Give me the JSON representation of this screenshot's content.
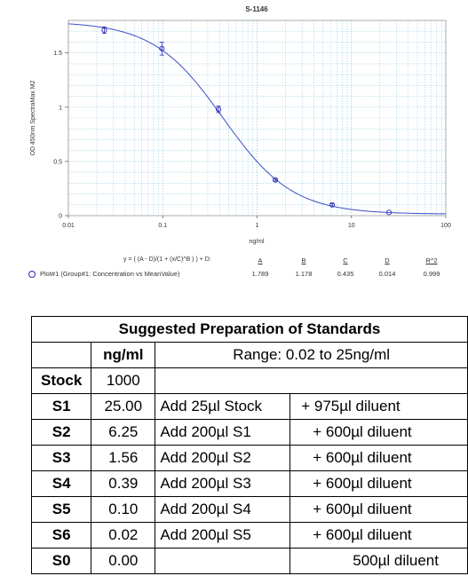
{
  "chart_data": {
    "type": "scatter",
    "title": "S-1146",
    "xlabel": "ng/ml",
    "ylabel": "OD 450nm SpectraMax M2",
    "xscale": "log",
    "xlim": [
      0.01,
      100
    ],
    "ylim": [
      0,
      1.8
    ],
    "x_ticks": [
      "0.01",
      "0.1",
      "1",
      "10",
      "100"
    ],
    "y_ticks": [
      "0",
      "0.5",
      "1",
      "1.5"
    ],
    "grid": true,
    "series": [
      {
        "name": "Plot#1 (Group#1: Concentration vs MeanValue)",
        "x": [
          0.024,
          0.098,
          0.39,
          1.56,
          6.25,
          25.0
        ],
        "y": [
          1.71,
          1.54,
          0.98,
          0.33,
          0.1,
          0.03
        ],
        "error": [
          0.03,
          0.06,
          0.03,
          0.01,
          0.01,
          0.005
        ]
      }
    ],
    "fit": {
      "equation": "y = ( (A - D)/(1 + (x/C)^B ) ) + D:",
      "params": {
        "A": 1.789,
        "B": 1.178,
        "C": 0.435,
        "D": 0.014,
        "R^2": 0.999
      }
    }
  },
  "legend": {
    "label": "Plot#1 (Group#1: Concentration vs MeanValue)",
    "equation": "y = ( (A - D)/(1 + (x/C)^B ) ) + D:",
    "param_headers": [
      "A",
      "B",
      "C",
      "D",
      "R^2"
    ],
    "param_values": [
      "1.789",
      "1.178",
      "0.435",
      "0.014",
      "0.999"
    ]
  },
  "table": {
    "title": "Suggested Preparation of Standards",
    "col_header": "ng/ml",
    "range": "Range: 0.02 to 25ng/ml",
    "rows": [
      {
        "label": "Stock",
        "conc": "1000",
        "action": "",
        "diluent": ""
      },
      {
        "label": "S1",
        "conc": "25.00",
        "action": "Add   25µl Stock",
        "diluent": "+ 975µl diluent"
      },
      {
        "label": "S2",
        "conc": "6.25",
        "action": "Add 200µl S1",
        "diluent": "+ 600µl diluent"
      },
      {
        "label": "S3",
        "conc": "1.56",
        "action": "Add 200µl S2",
        "diluent": "+ 600µl diluent"
      },
      {
        "label": "S4",
        "conc": "0.39",
        "action": "Add 200µl S3",
        "diluent": "+ 600µl diluent"
      },
      {
        "label": "S5",
        "conc": "0.10",
        "action": "Add 200µl S4",
        "diluent": "+ 600µl diluent"
      },
      {
        "label": "S6",
        "conc": "0.02",
        "action": "Add 200µl S5",
        "diluent": "+ 600µl diluent"
      },
      {
        "label": "S0",
        "conc": "0.00",
        "action": "",
        "diluent": "500µl diluent"
      }
    ]
  }
}
